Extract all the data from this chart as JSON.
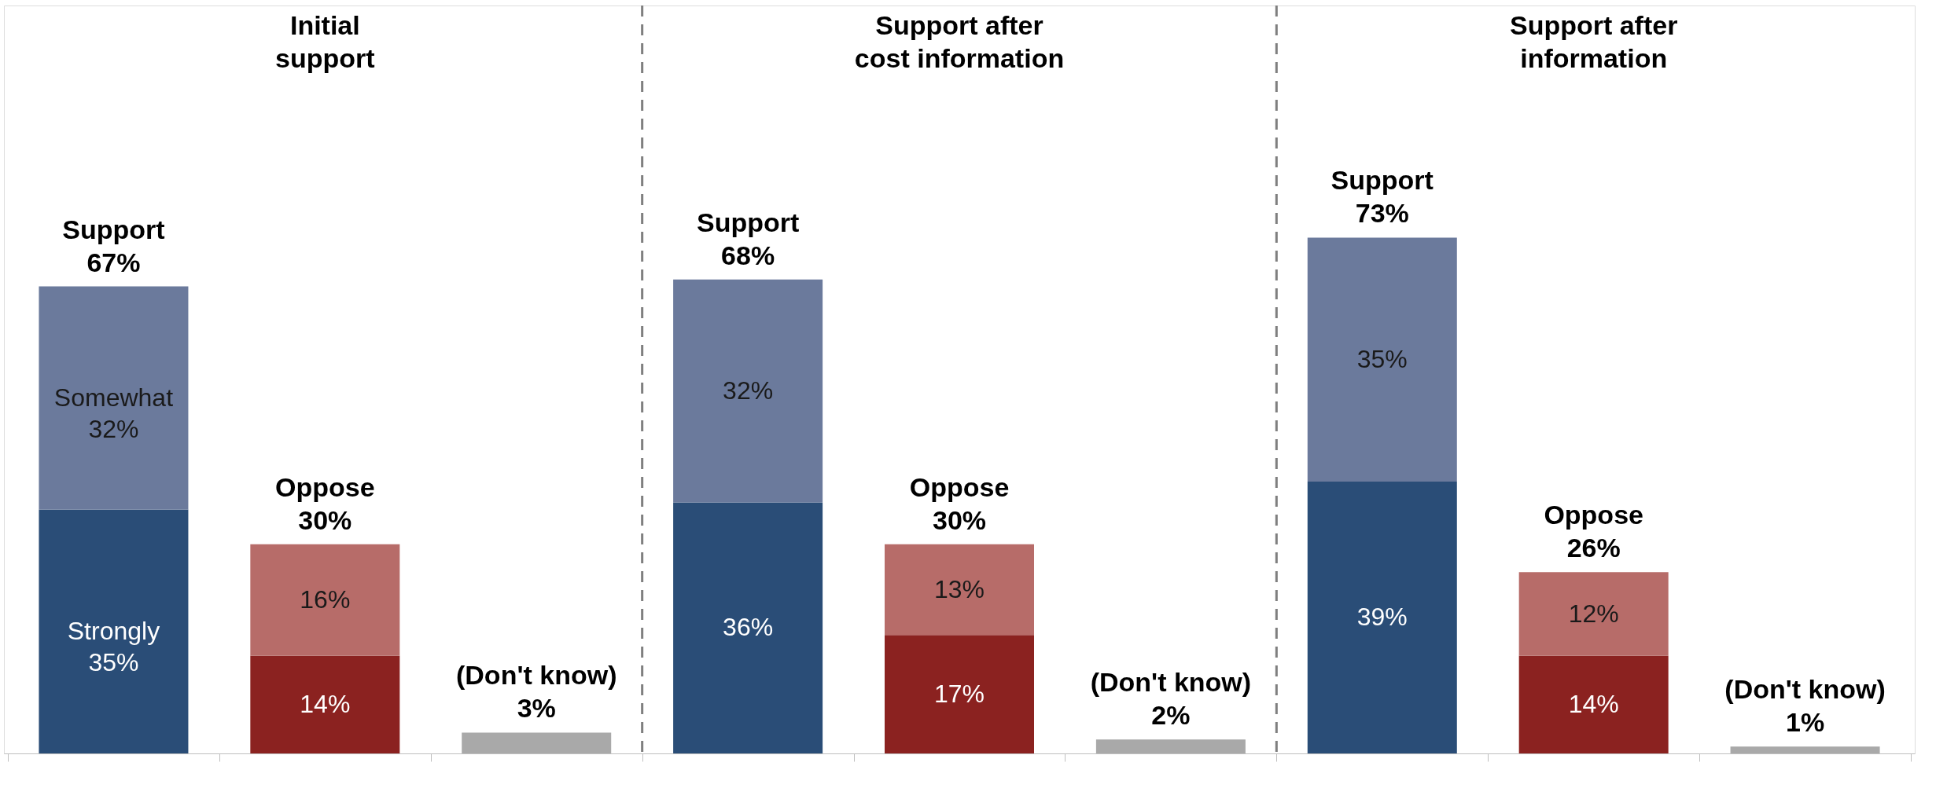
{
  "chart_data": {
    "type": "bar",
    "stacked": true,
    "grid": false,
    "categories": [
      null,
      null,
      null,
      null,
      null,
      null,
      null,
      null,
      null
    ],
    "series": [
      {
        "colors": [
          "#2a4d77",
          "#8b2220",
          "#a9a9a9",
          "#2a4d77",
          "#8b2220",
          "#a9a9a9",
          "#2a4d77",
          "#8b2220",
          "#a9a9a9"
        ],
        "values": [
          35,
          14,
          3,
          36,
          17,
          2,
          39,
          14,
          1
        ],
        "value_labels": [
          "Strongly\n35%",
          "14%",
          null,
          "36%",
          "17%",
          null,
          "39%",
          "14%",
          null
        ]
      },
      {
        "colors": [
          "#6b7a9c",
          "#b76c69",
          "#a9a9a9",
          "#6b7a9c",
          "#b76c69",
          "#a9a9a9",
          "#6b7a9c",
          "#b76c69",
          "#a9a9a9"
        ],
        "values": [
          32,
          16,
          null,
          32,
          13,
          null,
          35,
          12,
          null
        ],
        "value_labels": [
          "Somewhat\n32%",
          "16%",
          null,
          "32%",
          "13%",
          null,
          "35%",
          "12%",
          null
        ]
      }
    ],
    "totals": [
      "Support\n67%",
      "Oppose\n30%",
      "(Don't know)\n3%",
      "Support\n68%",
      "Oppose\n30%",
      "(Don't know)\n2%",
      "Support\n73%",
      "Oppose\n26%",
      "(Don't know)\n1%"
    ],
    "annotations": [
      "Initial\nsupport",
      "Support after\ncost information",
      "Support after\ninformation"
    ]
  }
}
